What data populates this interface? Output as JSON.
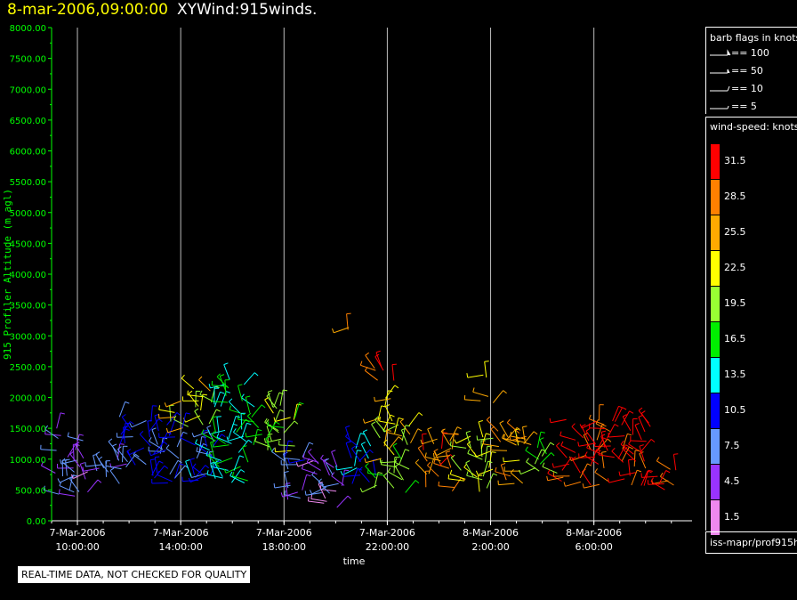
{
  "title": {
    "timestamp": "8-mar-2006,09:00:00",
    "name": "XYWind:915winds."
  },
  "colors": {
    "background": "#000000",
    "axis": "#00ff00",
    "gridline": "#bbbbbb",
    "timestamp": "#ffff00"
  },
  "chart_data": {
    "type": "scatter",
    "subtype": "wind-barb",
    "xlabel": "time",
    "ylabel": "915 Profiler Altitude (m agl)",
    "ylim": [
      0,
      8000
    ],
    "grid": "vertical",
    "y_ticks": [
      "0.00",
      "500.00",
      "1000.00",
      "1500.00",
      "2000.00",
      "2500.00",
      "3000.00",
      "3500.00",
      "4000.00",
      "4500.00",
      "5000.00",
      "5500.00",
      "6000.00",
      "6500.00",
      "7000.00",
      "7500.00",
      "8000.00"
    ],
    "x_ticks": [
      {
        "date": "7-Mar-2006",
        "time": "10:00:00",
        "hour": 10
      },
      {
        "date": "7-Mar-2006",
        "time": "14:00:00",
        "hour": 14
      },
      {
        "date": "7-Mar-2006",
        "time": "18:00:00",
        "hour": 18
      },
      {
        "date": "7-Mar-2006",
        "time": "22:00:00",
        "hour": 22
      },
      {
        "date": "8-Mar-2006",
        "time": "2:00:00",
        "hour": 26
      },
      {
        "date": "8-Mar-2006",
        "time": "6:00:00",
        "hour": 30
      }
    ],
    "xlim_hours": [
      9,
      33.8
    ],
    "wind_groups": [
      {
        "t0": 9.1,
        "t1": 10.4,
        "alt0": 400,
        "alt1": 1500,
        "speed": 6
      },
      {
        "t0": 10.4,
        "t1": 12.0,
        "alt0": 650,
        "alt1": 1000,
        "speed": 5
      },
      {
        "t0": 11.5,
        "t1": 13.6,
        "alt0": 600,
        "alt1": 1700,
        "speed": 9
      },
      {
        "t0": 13.6,
        "t1": 15.3,
        "alt0": 1500,
        "alt1": 2150,
        "speed": 22
      },
      {
        "t0": 13.6,
        "t1": 15.3,
        "alt0": 600,
        "alt1": 1500,
        "speed": 10
      },
      {
        "t0": 15.3,
        "t1": 17.0,
        "alt0": 600,
        "alt1": 2300,
        "speed": 15
      },
      {
        "t0": 17.0,
        "t1": 18.5,
        "alt0": 1100,
        "alt1": 2000,
        "speed": 19
      },
      {
        "t0": 18.0,
        "t1": 19.0,
        "alt0": 300,
        "alt1": 1100,
        "speed": 7
      },
      {
        "t0": 19.0,
        "t1": 20.5,
        "alt0": 150,
        "alt1": 1000,
        "speed": 5
      },
      {
        "t0": 20.5,
        "t1": 21.6,
        "alt0": 500,
        "alt1": 1300,
        "speed": 12
      },
      {
        "t0": 21.4,
        "t1": 22.9,
        "alt0": 450,
        "alt1": 1000,
        "speed": 18
      },
      {
        "t0": 21.6,
        "t1": 22.9,
        "alt0": 1000,
        "alt1": 2000,
        "speed": 23
      },
      {
        "t0": 21.5,
        "t1": 22.5,
        "alt0": 2200,
        "alt1": 2550,
        "speed": 29
      },
      {
        "t0": 20.3,
        "t1": 20.8,
        "alt0": 3050,
        "alt1": 3300,
        "speed": 27
      },
      {
        "t0": 23.4,
        "t1": 24.8,
        "alt0": 450,
        "alt1": 1400,
        "speed": 28
      },
      {
        "t0": 24.8,
        "t1": 26.2,
        "alt0": 450,
        "alt1": 1400,
        "speed": 21
      },
      {
        "t0": 26.2,
        "t1": 27.6,
        "alt0": 600,
        "alt1": 1500,
        "speed": 26
      },
      {
        "t0": 25.6,
        "t1": 26.1,
        "alt0": 1850,
        "alt1": 2400,
        "speed": 24
      },
      {
        "t0": 27.6,
        "t1": 28.6,
        "alt0": 650,
        "alt1": 1200,
        "speed": 18
      },
      {
        "t0": 28.6,
        "t1": 30.8,
        "alt0": 550,
        "alt1": 1650,
        "speed": 31
      },
      {
        "t0": 30.8,
        "t1": 32.2,
        "alt0": 550,
        "alt1": 1700,
        "speed": 32
      },
      {
        "t0": 32.2,
        "t1": 33.2,
        "alt0": 500,
        "alt1": 1000,
        "speed": 31
      }
    ]
  },
  "legend_flags": {
    "header": "barb flags in knots",
    "items": [
      "== 100",
      "== 50",
      "== 10",
      "== 5"
    ]
  },
  "legend_speed": {
    "header": "wind-speed: knots",
    "items": [
      {
        "label": "31.5",
        "color": "#ff0000"
      },
      {
        "label": "28.5",
        "color": "#ff8000"
      },
      {
        "label": "25.5",
        "color": "#ffaa00"
      },
      {
        "label": "22.5",
        "color": "#ffff00"
      },
      {
        "label": "19.5",
        "color": "#99ff33"
      },
      {
        "label": "16.5",
        "color": "#00ee00"
      },
      {
        "label": "13.5",
        "color": "#00ffff"
      },
      {
        "label": "10.5",
        "color": "#0000ff"
      },
      {
        "label": "7.5",
        "color": "#6699ff"
      },
      {
        "label": "4.5",
        "color": "#9933ff"
      },
      {
        "label": "1.5",
        "color": "#ee88ee"
      }
    ]
  },
  "source": "iss-mapr/prof915h",
  "disclaimer": "REAL-TIME DATA, NOT CHECKED FOR QUALITY"
}
